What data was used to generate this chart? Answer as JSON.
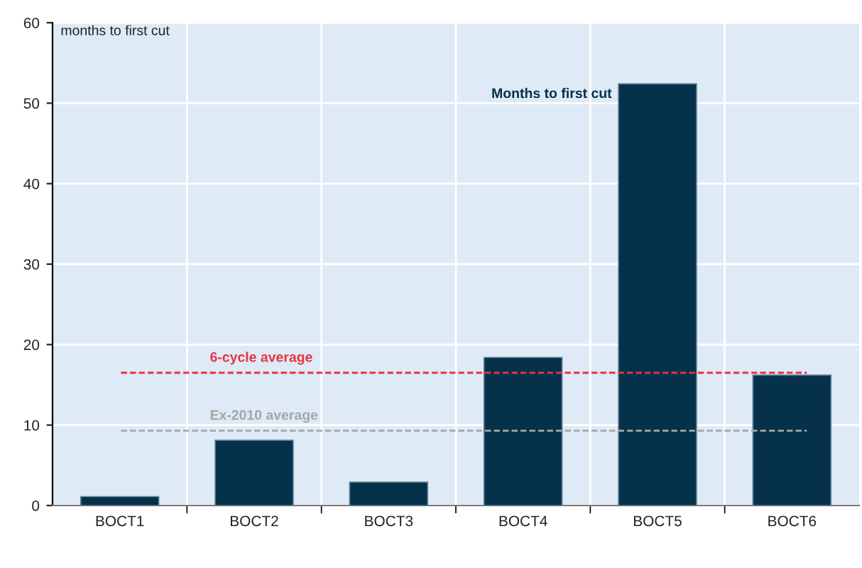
{
  "chart_data": {
    "type": "bar",
    "ylabel": "months to first cut",
    "categories": [
      "BOCT1",
      "BOCT2",
      "BOCT3",
      "BOCT4",
      "BOCT5",
      "BOCT6"
    ],
    "series": [
      {
        "name": "Months to first cut",
        "color": "#06314b",
        "values": [
          1.1,
          8.1,
          2.9,
          18.4,
          52.4,
          16.2
        ]
      }
    ],
    "ylim": [
      0,
      60
    ],
    "yticks": [
      0,
      10,
      20,
      30,
      40,
      50,
      60
    ],
    "grid": true,
    "ref_lines": [
      {
        "axis": "y",
        "value": 16.5,
        "label": "6-cycle average",
        "color": "#e8343f",
        "line_style": "dashed"
      },
      {
        "axis": "y",
        "value": 9.3,
        "label": "Ex-2010 average",
        "color": "#a6a6a6",
        "line_style": "dashed"
      }
    ]
  }
}
